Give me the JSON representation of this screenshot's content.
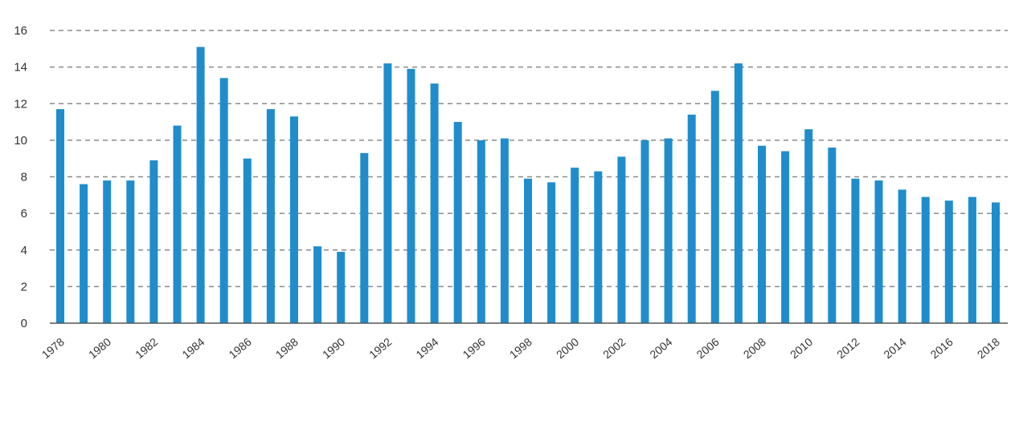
{
  "chart_data": {
    "type": "bar",
    "categories": [
      "1978",
      "1979",
      "1980",
      "1981",
      "1982",
      "1983",
      "1984",
      "1985",
      "1986",
      "1987",
      "1988",
      "1989",
      "1990",
      "1991",
      "1992",
      "1993",
      "1994",
      "1995",
      "1996",
      "1997",
      "1998",
      "1999",
      "2000",
      "2001",
      "2002",
      "2003",
      "2004",
      "2005",
      "2006",
      "2007",
      "2008",
      "2009",
      "2010",
      "2011",
      "2012",
      "2013",
      "2014",
      "2015",
      "2016",
      "2017",
      "2018"
    ],
    "values": [
      11.7,
      7.6,
      7.8,
      7.8,
      8.9,
      10.8,
      15.1,
      13.4,
      9.0,
      11.7,
      11.3,
      4.2,
      3.9,
      9.3,
      14.2,
      13.9,
      13.1,
      11.0,
      10.0,
      10.1,
      7.9,
      7.7,
      8.5,
      8.3,
      9.1,
      10.0,
      10.1,
      11.4,
      12.7,
      14.2,
      9.7,
      9.4,
      10.6,
      9.6,
      7.9,
      7.8,
      7.3,
      6.9,
      6.7,
      6.9,
      6.6
    ],
    "x_tick_labels": [
      "1978",
      "1980",
      "1982",
      "1984",
      "1986",
      "1988",
      "1990",
      "1992",
      "1994",
      "1996",
      "1998",
      "2000",
      "2002",
      "2004",
      "2006",
      "2008",
      "2010",
      "2012",
      "2014",
      "2016",
      "2018"
    ],
    "y_ticks": [
      0,
      2,
      4,
      6,
      8,
      10,
      12,
      14,
      16
    ],
    "ylim": [
      0,
      16
    ],
    "title": "",
    "xlabel": "",
    "ylabel": "",
    "grid": "horizontal-dashed",
    "legend": "none",
    "colors": {
      "bar": "#1f8dcb",
      "grid": "#8a8a8a",
      "axis": "#555555",
      "text": "#333333"
    }
  }
}
